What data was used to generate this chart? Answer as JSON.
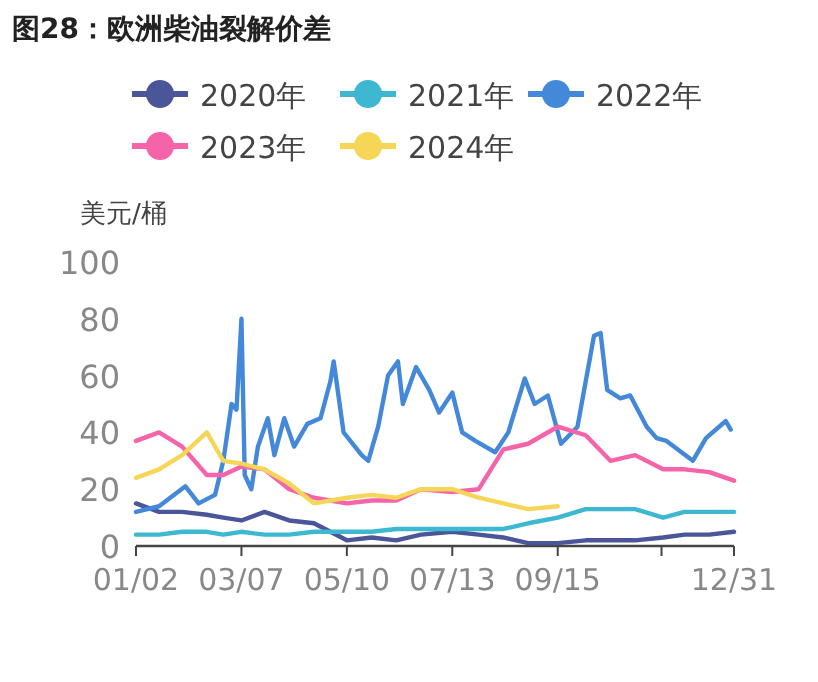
{
  "chart_data": {
    "type": "line",
    "title": "图28：欧洲柴油裂解价差",
    "ylabel": "美元/桶",
    "x": [
      "--01-02",
      "--01-16",
      "--01-30",
      "--02-14",
      "--02-24",
      "--03-07",
      "--03-21",
      "--04-05",
      "--04-20",
      "--05-10",
      "--05-25",
      "--06-09",
      "--06-24",
      "--07-13",
      "--07-29",
      "--08-13",
      "--08-28",
      "--09-15",
      "--10-02",
      "--10-17",
      "--11-01",
      "--11-18",
      "--12-01",
      "--12-16",
      "--12-31"
    ],
    "series": [
      {
        "name": "2020年",
        "color": "#4a5699",
        "values": [
          15,
          12,
          12,
          11,
          10,
          9,
          12,
          9,
          8,
          2,
          3,
          2,
          4,
          5,
          4,
          3,
          1,
          1,
          2,
          2,
          2,
          3,
          4,
          4,
          5
        ]
      },
      {
        "name": "2021年",
        "color": "#3db8d0",
        "values": [
          4,
          4,
          5,
          5,
          4,
          5,
          4,
          4,
          5,
          5,
          5,
          6,
          6,
          6,
          6,
          6,
          8,
          10,
          13,
          13,
          13,
          10,
          12,
          12,
          12
        ]
      },
      {
        "name": "2022年",
        "color": "#4489d9",
        "x": [
          "--01-02",
          "--01-16",
          "--02-01",
          "--02-09",
          "--02-19",
          "--02-24",
          "--03-01",
          "--03-04",
          "--03-07",
          "--03-09",
          "--03-13",
          "--03-17",
          "--03-23",
          "--03-27",
          "--04-02",
          "--04-08",
          "--04-16",
          "--04-24",
          "--04-30",
          "--05-02",
          "--05-08",
          "--05-19",
          "--05-23",
          "--05-29",
          "--06-04",
          "--06-10",
          "--06-13",
          "--06-21",
          "--06-29",
          "--07-05",
          "--07-13",
          "--07-19",
          "--07-27",
          "--08-08",
          "--08-16",
          "--08-26",
          "--09-01",
          "--09-09",
          "--09-17",
          "--09-27",
          "--10-07",
          "--10-11",
          "--10-15",
          "--10-23",
          "--10-29",
          "--11-08",
          "--11-14",
          "--11-20",
          "--12-06",
          "--12-14",
          "--12-26",
          "--12-29"
        ],
        "values": [
          12,
          14,
          21,
          15,
          18,
          30,
          50,
          48,
          80,
          25,
          20,
          35,
          45,
          32,
          45,
          35,
          43,
          45,
          58,
          65,
          40,
          32,
          30,
          42,
          60,
          65,
          50,
          63,
          55,
          47,
          54,
          40,
          37,
          33,
          40,
          59,
          50,
          53,
          36,
          42,
          74,
          75,
          55,
          52,
          53,
          42,
          38,
          37,
          30,
          38,
          44,
          41
        ]
      },
      {
        "name": "2023年",
        "color": "#f564a9",
        "values": [
          37,
          40,
          35,
          25,
          25,
          28,
          27,
          20,
          17,
          15,
          16,
          16,
          20,
          19,
          20,
          34,
          36,
          42,
          39,
          30,
          32,
          27,
          27,
          26,
          23
        ]
      },
      {
        "name": "2024年",
        "color": "#f5d657",
        "values": [
          24,
          27,
          32,
          40,
          30,
          29,
          27,
          22,
          15,
          17,
          18,
          17,
          20,
          20,
          17,
          15,
          13,
          14,
          null,
          null,
          null,
          null,
          null,
          null,
          null
        ]
      }
    ],
    "xlim": [
      "--01-02",
      "--12-31"
    ],
    "xticks": [
      {
        "value": "--01-02",
        "label": "01/02"
      },
      {
        "value": "--03-07",
        "label": "03/07"
      },
      {
        "value": "--05-10",
        "label": "05/10"
      },
      {
        "value": "--07-13",
        "label": "07/13"
      },
      {
        "value": "--09-15",
        "label": "09/15"
      },
      {
        "value": "--11-17",
        "label": null
      },
      {
        "value": "--12-31",
        "label": "12/31"
      }
    ],
    "ylim": [
      0,
      100
    ],
    "yticks": [
      0,
      20,
      40,
      60,
      80,
      100
    ],
    "legend": "top",
    "grid": false,
    "marker": "none",
    "line_style": "solid"
  }
}
